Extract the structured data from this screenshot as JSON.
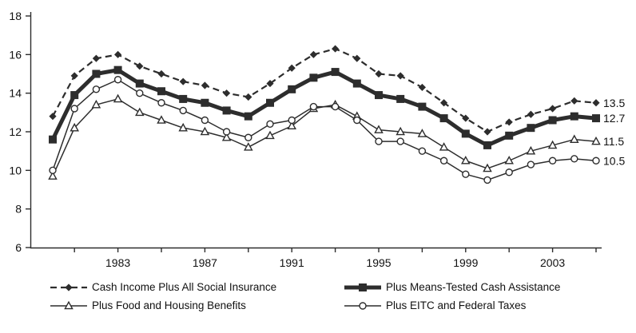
{
  "chart_data": {
    "type": "line",
    "x": [
      1980,
      1981,
      1982,
      1983,
      1984,
      1985,
      1986,
      1987,
      1988,
      1989,
      1990,
      1991,
      1992,
      1993,
      1994,
      1995,
      1996,
      1997,
      1998,
      1999,
      2000,
      2001,
      2002,
      2003,
      2004,
      2005
    ],
    "x_tick_label_years": [
      1983,
      1987,
      1991,
      1995,
      1999,
      2003
    ],
    "x_minor_tick_years": [
      1981,
      1983,
      1985,
      1987,
      1989,
      1991,
      1993,
      1995,
      1997,
      1999,
      2001,
      2003,
      2005
    ],
    "y_ticks": [
      6,
      8,
      10,
      12,
      14,
      16,
      18
    ],
    "ylim": [
      6,
      18
    ],
    "grid": false,
    "legend_position": "bottom",
    "color": "#2d2d2d",
    "series": [
      {
        "name": "Cash Income Plus All Social Insurance",
        "marker": "diamond",
        "line": "dashed",
        "end_label": "13.5",
        "values": [
          12.8,
          14.9,
          15.8,
          16.0,
          15.4,
          15.0,
          14.6,
          14.4,
          14.0,
          13.8,
          14.5,
          15.3,
          16.0,
          16.3,
          15.8,
          15.0,
          14.9,
          14.3,
          13.5,
          12.7,
          12.0,
          12.5,
          12.9,
          13.2,
          13.6,
          13.5
        ]
      },
      {
        "name": "Plus Means-Tested Cash Assistance",
        "marker": "square",
        "line": "thick",
        "end_label": "12.7",
        "values": [
          11.6,
          13.9,
          15.0,
          15.2,
          14.5,
          14.1,
          13.7,
          13.5,
          13.1,
          12.8,
          13.5,
          14.2,
          14.8,
          15.1,
          14.5,
          13.9,
          13.7,
          13.3,
          12.7,
          11.9,
          11.3,
          11.8,
          12.2,
          12.6,
          12.8,
          12.7
        ]
      },
      {
        "name": "Plus Food and Housing Benefits",
        "marker": "triangle-open",
        "line": "thin",
        "end_label": "11.5",
        "values": [
          9.7,
          12.2,
          13.4,
          13.7,
          13.0,
          12.6,
          12.2,
          12.0,
          11.7,
          11.2,
          11.8,
          12.3,
          13.2,
          13.4,
          12.8,
          12.1,
          12.0,
          11.9,
          11.2,
          10.5,
          10.1,
          10.5,
          11.0,
          11.3,
          11.6,
          11.5
        ]
      },
      {
        "name": "Plus EITC and Federal Taxes",
        "marker": "circle-open",
        "line": "thin",
        "end_label": "10.5",
        "values": [
          10.0,
          13.2,
          14.2,
          14.7,
          14.0,
          13.5,
          13.1,
          12.6,
          12.0,
          11.7,
          12.4,
          12.6,
          13.3,
          13.3,
          12.6,
          11.5,
          11.5,
          11.0,
          10.5,
          9.8,
          9.5,
          9.9,
          10.3,
          10.5,
          10.6,
          10.5
        ]
      }
    ]
  }
}
